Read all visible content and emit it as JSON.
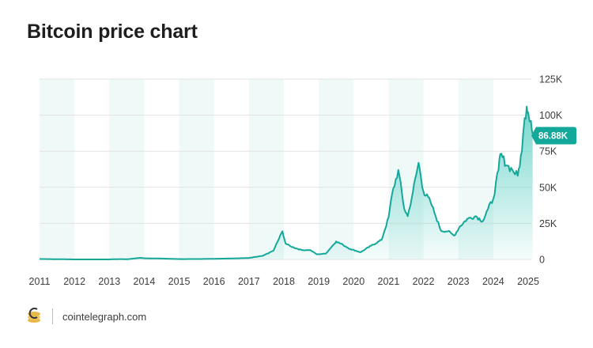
{
  "title": "Bitcoin price chart",
  "footer": {
    "source": "cointelegraph.com",
    "logo_icon": "cointelegraph-logo-icon"
  },
  "colors": {
    "line": "#14a89a",
    "fill_top": "#5fd0c4",
    "band": "#eff9f8",
    "grid": "#e3e3e3",
    "label_bg": "#14a89a"
  },
  "chart_data": {
    "type": "area",
    "title": "Bitcoin price chart",
    "xlabel": "",
    "ylabel": "",
    "x_ticks": [
      "2011",
      "2012",
      "2013",
      "2014",
      "2015",
      "2016",
      "2017",
      "2018",
      "2019",
      "2020",
      "2021",
      "2022",
      "2023",
      "2024",
      "2025"
    ],
    "y_ticks": [
      "0",
      "25K",
      "50K",
      "75K",
      "100K",
      "125K"
    ],
    "y_tick_values": [
      0,
      25000,
      50000,
      75000,
      100000,
      125000
    ],
    "xlim": [
      2011.0,
      2025.0
    ],
    "ylim": [
      0,
      125000
    ],
    "grid": "horizontal",
    "alternating_year_bands": true,
    "last_value_label": "86.88K",
    "last_value": 86880,
    "series": [
      {
        "points": [
          [
            2011.0,
            300
          ],
          [
            2012.0,
            5
          ],
          [
            2013.0,
            13
          ],
          [
            2013.3,
            230
          ],
          [
            2013.5,
            100
          ],
          [
            2013.9,
            1100
          ],
          [
            2014.0,
            800
          ],
          [
            2014.5,
            600
          ],
          [
            2015.0,
            250
          ],
          [
            2015.5,
            260
          ],
          [
            2016.0,
            430
          ],
          [
            2016.5,
            670
          ],
          [
            2017.0,
            1000
          ],
          [
            2017.4,
            2500
          ],
          [
            2017.7,
            6000
          ],
          [
            2017.96,
            19500
          ],
          [
            2018.05,
            11000
          ],
          [
            2018.2,
            9000
          ],
          [
            2018.5,
            6500
          ],
          [
            2018.75,
            6500
          ],
          [
            2018.95,
            3500
          ],
          [
            2019.2,
            4000
          ],
          [
            2019.5,
            12500
          ],
          [
            2019.7,
            10000
          ],
          [
            2019.9,
            7200
          ],
          [
            2020.2,
            5000
          ],
          [
            2020.5,
            9500
          ],
          [
            2020.8,
            13500
          ],
          [
            2021.0,
            29000
          ],
          [
            2021.1,
            45000
          ],
          [
            2021.28,
            62000
          ],
          [
            2021.45,
            35000
          ],
          [
            2021.55,
            30000
          ],
          [
            2021.7,
            47000
          ],
          [
            2021.86,
            67000
          ],
          [
            2022.0,
            47000
          ],
          [
            2022.2,
            40000
          ],
          [
            2022.35,
            30000
          ],
          [
            2022.5,
            20000
          ],
          [
            2022.7,
            19500
          ],
          [
            2022.88,
            16500
          ],
          [
            2023.05,
            23000
          ],
          [
            2023.25,
            28000
          ],
          [
            2023.5,
            30000
          ],
          [
            2023.7,
            26500
          ],
          [
            2023.85,
            35000
          ],
          [
            2024.0,
            42000
          ],
          [
            2024.15,
            62000
          ],
          [
            2024.2,
            73000
          ],
          [
            2024.4,
            65000
          ],
          [
            2024.55,
            62000
          ],
          [
            2024.7,
            58000
          ],
          [
            2024.82,
            75000
          ],
          [
            2024.9,
            98000
          ],
          [
            2024.96,
            106000
          ],
          [
            2025.0,
            102000
          ],
          [
            2025.08,
            96000
          ],
          [
            2025.13,
            86880
          ]
        ]
      }
    ]
  }
}
